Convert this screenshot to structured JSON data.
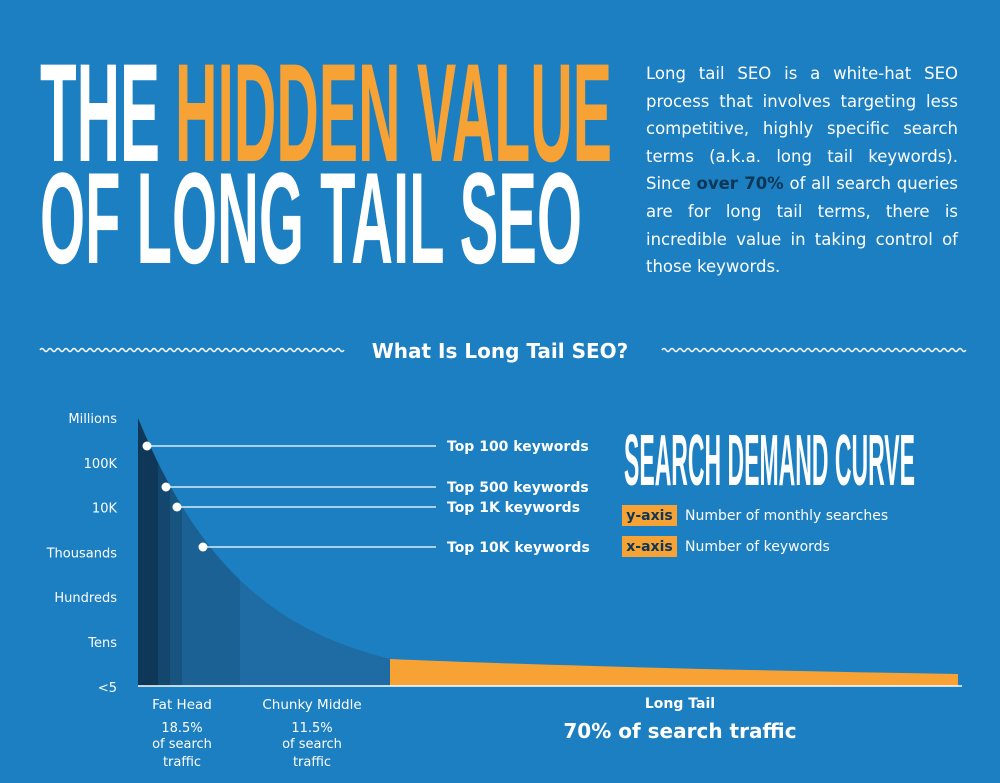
{
  "header": {
    "title_white": "THE",
    "title_orange": "HIDDEN VALUE",
    "title_line2": "OF LONG TAIL SEO"
  },
  "intro": {
    "before": "Long tail SEO is a white-hat SEO process that involves targeting less competitive, highly specific search terms (a.k.a. long tail keywords). Since ",
    "highlight": "over 70%",
    "after": " of all search queries are for long tail terms, there is incredible value in taking control of those keywords."
  },
  "section_title": "What Is Long Tail SEO?",
  "y_axis_labels": [
    "Millions",
    "100K",
    "10K",
    "Thousands",
    "Hundreds",
    "Tens",
    "<5"
  ],
  "callouts": [
    "Top 100 keywords",
    "Top 500 keywords",
    "Top 1K keywords",
    "Top 10K keywords"
  ],
  "legend": {
    "title": "SEARCH DEMAND CURVE",
    "items": [
      {
        "key": "y-axis",
        "text": "Number of monthly searches"
      },
      {
        "key": "x-axis",
        "text": "Number of keywords"
      }
    ]
  },
  "segments": [
    {
      "name": "Fat Head",
      "share": "18.5%",
      "note": "of search traffic"
    },
    {
      "name": "Chunky Middle",
      "share": "11.5%",
      "note": "of search traffic"
    }
  ],
  "long_tail": {
    "name": "Long Tail",
    "share": "70% of search traffic"
  }
}
